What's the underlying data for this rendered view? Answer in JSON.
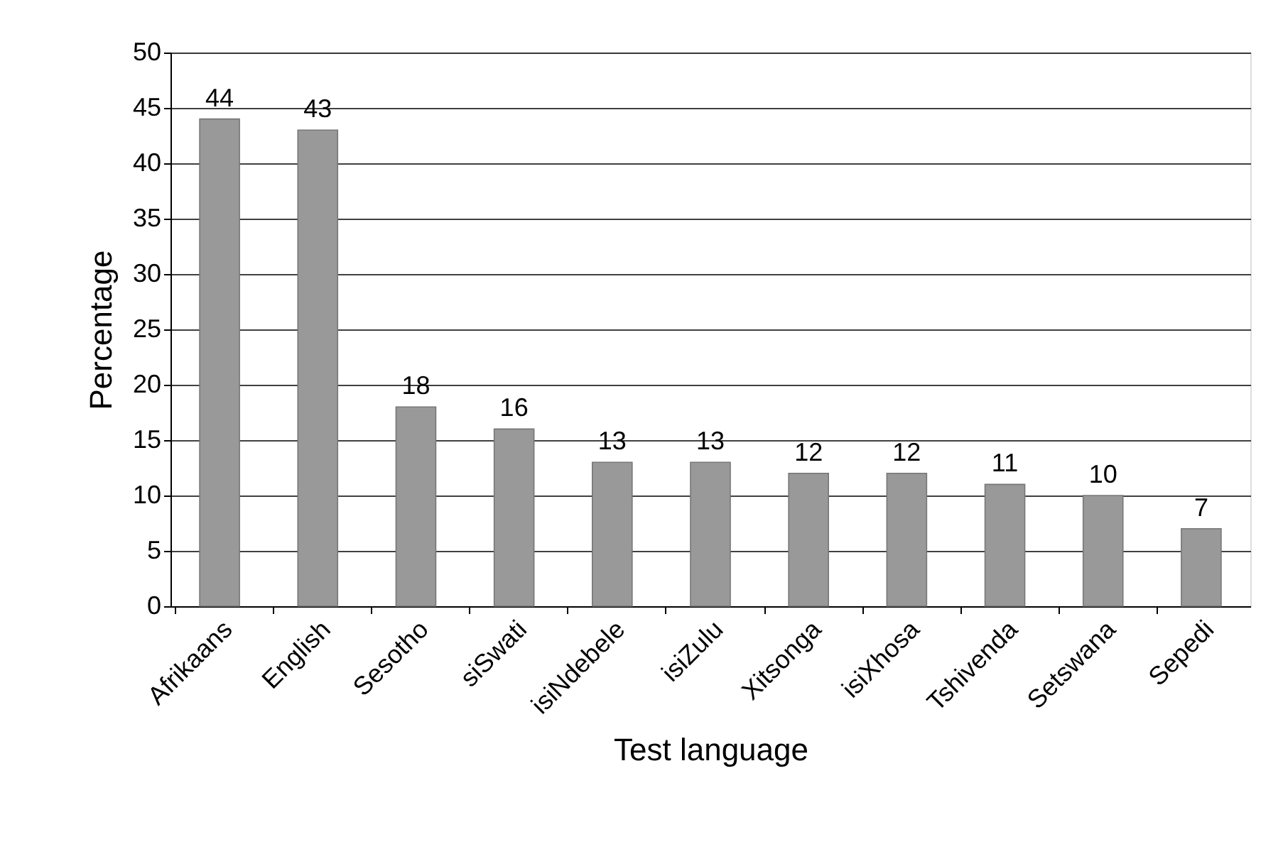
{
  "chart_data": {
    "type": "bar",
    "xlabel": "Test language",
    "ylabel": "Percentage",
    "categories": [
      "Afrikaans",
      "English",
      "Sesotho",
      "siSwati",
      "isiNdebele",
      "isiZulu",
      "Xitsonga",
      "isiXhosa",
      "Tshivenda",
      "Setswana",
      "Sepedi"
    ],
    "values": [
      44,
      43,
      18,
      16,
      13,
      13,
      12,
      12,
      11,
      10,
      7
    ],
    "color": "#999999",
    "ylim": [
      0,
      50
    ],
    "yticks": [
      0,
      5,
      10,
      15,
      20,
      25,
      30,
      35,
      40,
      45,
      50
    ],
    "grid": "y",
    "data_labels": true
  }
}
